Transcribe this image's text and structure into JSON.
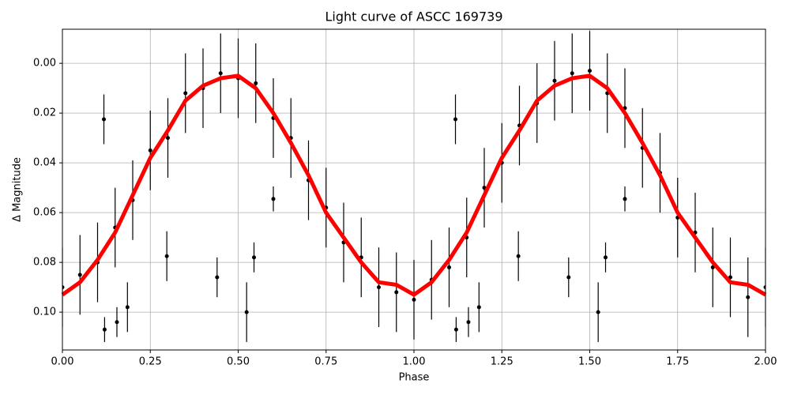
{
  "chart_data": {
    "type": "scatter",
    "title": "Light curve of ASCC 169739",
    "xlabel": "Phase",
    "ylabel": "Δ Magnitude",
    "xlim": [
      0,
      2
    ],
    "ylim": [
      -0.0137,
      0.1152
    ],
    "y_inverted": true,
    "grid": true,
    "xticks": [
      {
        "value": 0,
        "label": "0.00"
      },
      {
        "value": 0.25,
        "label": "0.25"
      },
      {
        "value": 0.5,
        "label": "0.50"
      },
      {
        "value": 0.75,
        "label": "0.75"
      },
      {
        "value": 1,
        "label": "1.00"
      },
      {
        "value": 1.25,
        "label": "1.25"
      },
      {
        "value": 1.5,
        "label": "1.50"
      },
      {
        "value": 1.75,
        "label": "1.75"
      },
      {
        "value": 2,
        "label": "2.00"
      }
    ],
    "yticks": [
      {
        "value": 0,
        "label": "0.00"
      },
      {
        "value": 0.02,
        "label": "0.02"
      },
      {
        "value": 0.04,
        "label": "0.04"
      },
      {
        "value": 0.06,
        "label": "0.06"
      },
      {
        "value": 0.08,
        "label": "0.08"
      },
      {
        "value": 0.1,
        "label": "0.10"
      }
    ],
    "series": [
      {
        "kind": "points",
        "color": "#000000",
        "x": [
          0,
          0.05,
          0.1,
          0.15,
          0.2,
          0.25,
          0.3,
          0.35,
          0.4,
          0.45,
          0.5,
          0.55,
          0.6,
          0.65,
          0.7,
          0.75,
          0.8,
          0.85,
          0.9,
          0.95,
          1,
          1.05,
          1.1,
          1.15,
          1.2,
          1.25,
          1.3,
          1.35,
          1.4,
          1.45,
          1.5,
          1.55,
          1.6,
          1.65,
          1.7,
          1.75,
          1.8,
          1.85,
          1.9,
          1.95,
          2,
          0.118,
          0.12,
          0.155,
          0.185,
          0.297,
          0.44,
          0.524,
          0.545,
          0.6,
          1.118,
          1.12,
          1.155,
          1.185,
          1.297,
          1.44,
          1.524,
          1.545,
          1.6
        ],
        "values": [
          0.09,
          0.085,
          0.08,
          0.066,
          0.055,
          0.035,
          0.03,
          0.012,
          0.01,
          0.004,
          0.006,
          0.008,
          0.022,
          0.03,
          0.047,
          0.058,
          0.072,
          0.078,
          0.09,
          0.092,
          0.095,
          0.087,
          0.082,
          0.07,
          0.05,
          0.04,
          0.025,
          0.016,
          0.007,
          0.004,
          0.003,
          0.012,
          0.018,
          0.034,
          0.044,
          0.062,
          0.068,
          0.082,
          0.086,
          0.094,
          0.09,
          0.0225,
          0.107,
          0.104,
          0.098,
          0.0775,
          0.086,
          0.1,
          0.078,
          0.0545,
          0.0225,
          0.107,
          0.104,
          0.098,
          0.0775,
          0.086,
          0.1,
          0.078,
          0.0545
        ],
        "errors": [
          0.016,
          0.016,
          0.016,
          0.016,
          0.016,
          0.016,
          0.016,
          0.016,
          0.016,
          0.016,
          0.016,
          0.016,
          0.016,
          0.016,
          0.016,
          0.016,
          0.016,
          0.016,
          0.016,
          0.016,
          0.016,
          0.016,
          0.016,
          0.016,
          0.016,
          0.016,
          0.016,
          0.016,
          0.016,
          0.016,
          0.016,
          0.016,
          0.016,
          0.016,
          0.016,
          0.016,
          0.016,
          0.016,
          0.016,
          0.016,
          0.016,
          0.01,
          0.005,
          0.006,
          0.01,
          0.01,
          0.008,
          0.012,
          0.006,
          0.005,
          0.01,
          0.005,
          0.006,
          0.01,
          0.01,
          0.008,
          0.012,
          0.006,
          0.005
        ]
      },
      {
        "kind": "line",
        "color": "#ff0000",
        "x": [
          0,
          0.05,
          0.1,
          0.15,
          0.2,
          0.25,
          0.3,
          0.35,
          0.4,
          0.45,
          0.5,
          0.55,
          0.6,
          0.65,
          0.7,
          0.75,
          0.8,
          0.85,
          0.9,
          0.95,
          1,
          1.05,
          1.1,
          1.15,
          1.2,
          1.25,
          1.3,
          1.35,
          1.4,
          1.45,
          1.5,
          1.55,
          1.6,
          1.65,
          1.7,
          1.75,
          1.8,
          1.85,
          1.9,
          1.95,
          2
        ],
        "values": [
          0.093,
          0.088,
          0.079,
          0.068,
          0.053,
          0.038,
          0.027,
          0.015,
          0.009,
          0.006,
          0.005,
          0.01,
          0.02,
          0.032,
          0.045,
          0.06,
          0.07,
          0.08,
          0.088,
          0.089,
          0.093,
          0.088,
          0.079,
          0.068,
          0.053,
          0.038,
          0.027,
          0.015,
          0.009,
          0.006,
          0.005,
          0.01,
          0.02,
          0.032,
          0.045,
          0.06,
          0.07,
          0.08,
          0.088,
          0.089,
          0.093
        ]
      }
    ]
  }
}
